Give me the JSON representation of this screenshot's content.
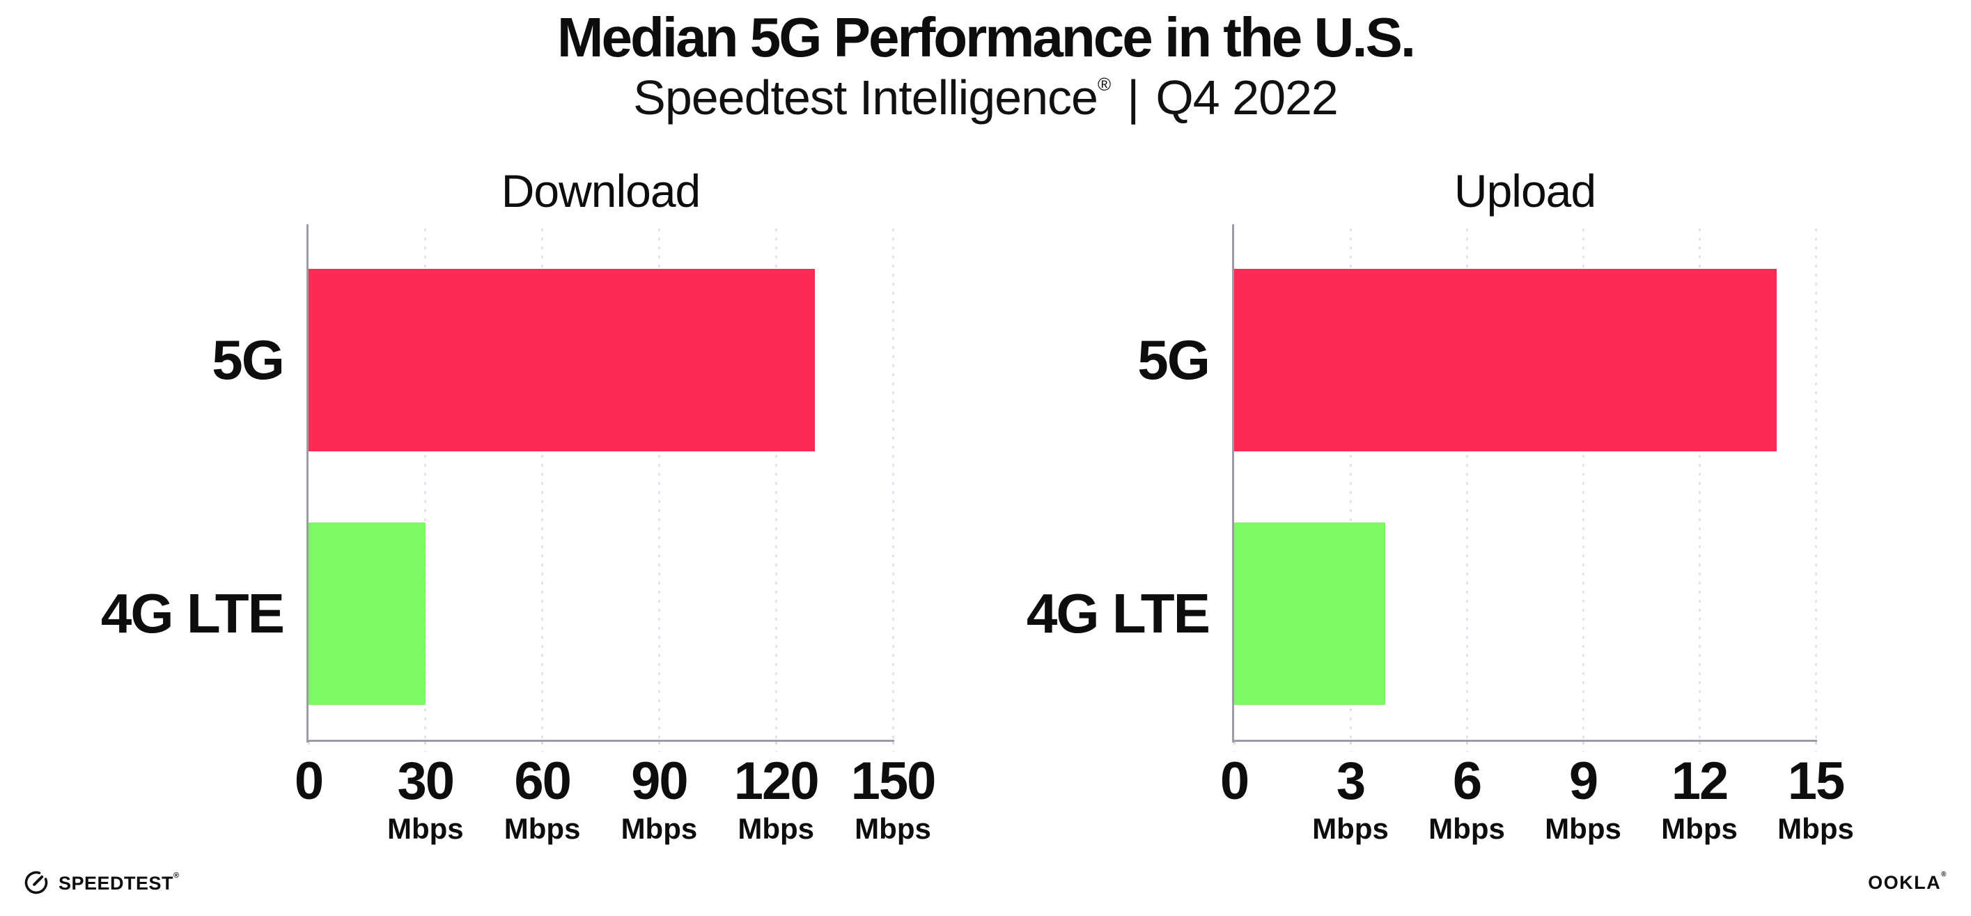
{
  "header": {
    "title": "Median 5G Performance in the U.S.",
    "subtitle_brand": "Speedtest Intelligence",
    "subtitle_reg": "®",
    "subtitle_separator": "|",
    "subtitle_period": "Q4 2022"
  },
  "footer": {
    "speedtest_label": "SPEEDTEST",
    "speedtest_reg": "®",
    "speedtest_icon": "gauge-icon",
    "ookla_label": "OOKLA",
    "ookla_reg": "®"
  },
  "colors": {
    "bar_5g": "#FC2B56",
    "bar_4g_lte": "#7EFA64",
    "axis": "#9C9CA4",
    "gridline": "#E3E3EF",
    "tick_stub": "#DCDCE8",
    "text": "#0D0D0D",
    "background": "#FFFFFF"
  },
  "chart_data": [
    {
      "type": "bar",
      "orientation": "horizontal",
      "title": "Download",
      "categories": [
        "5G",
        "4G LTE"
      ],
      "values": [
        130,
        30
      ],
      "unit": "Mbps",
      "xlim": [
        0,
        150
      ],
      "xticks": [
        0,
        30,
        60,
        90,
        120,
        150
      ],
      "grid": "dotted-vertical",
      "legend": "none",
      "series_colors": [
        "#FC2B56",
        "#7EFA64"
      ]
    },
    {
      "type": "bar",
      "orientation": "horizontal",
      "title": "Upload",
      "categories": [
        "5G",
        "4G LTE"
      ],
      "values": [
        14,
        3.9
      ],
      "unit": "Mbps",
      "xlim": [
        0,
        15
      ],
      "xticks": [
        0,
        3,
        6,
        9,
        12,
        15
      ],
      "grid": "dotted-vertical",
      "legend": "none",
      "series_colors": [
        "#FC2B56",
        "#7EFA64"
      ]
    }
  ]
}
